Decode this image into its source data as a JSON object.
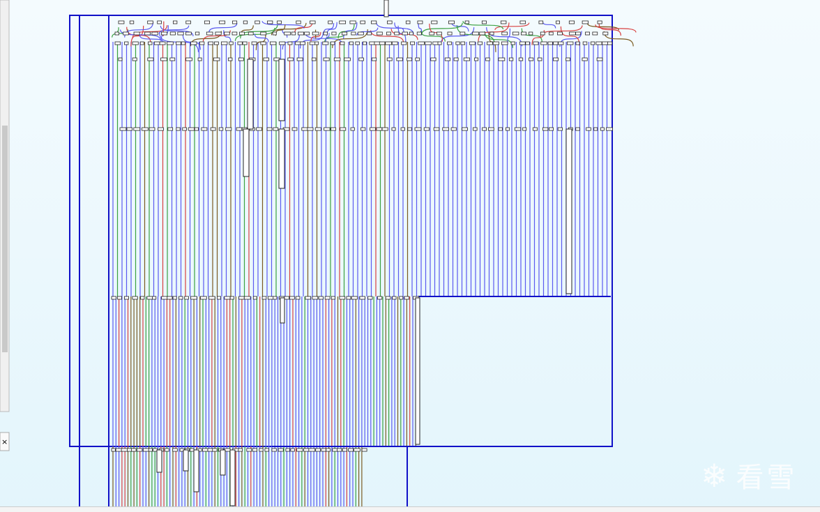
{
  "watermark": {
    "text": "看雪"
  }
}
